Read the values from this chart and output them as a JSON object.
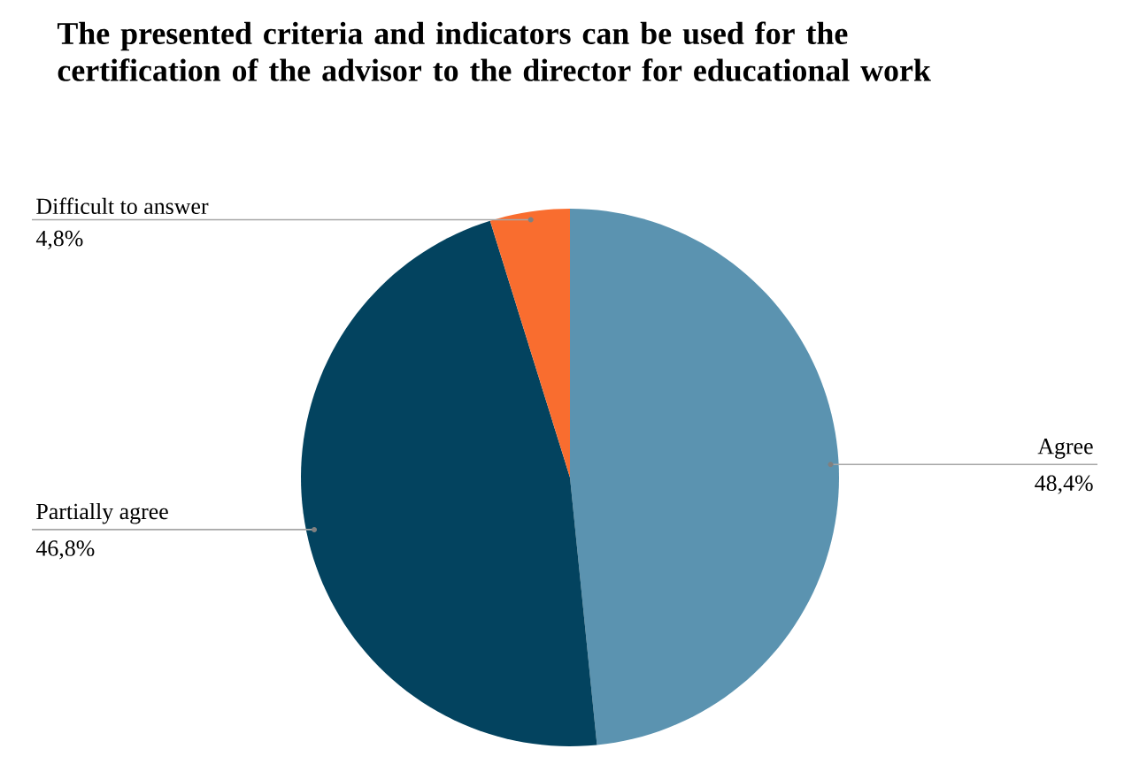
{
  "chart_data": {
    "type": "pie",
    "title": "The presented criteria and indicators can be used for the certification of the advisor to the director for educational work",
    "categories": [
      "Agree",
      "Partially agree",
      "Difficult to answer"
    ],
    "values": [
      48.4,
      46.8,
      4.8
    ],
    "value_labels": [
      "48,4%",
      "46,8%",
      "4,8%"
    ],
    "colors": [
      "#5b93b0",
      "#03435f",
      "#f96d2f"
    ]
  }
}
